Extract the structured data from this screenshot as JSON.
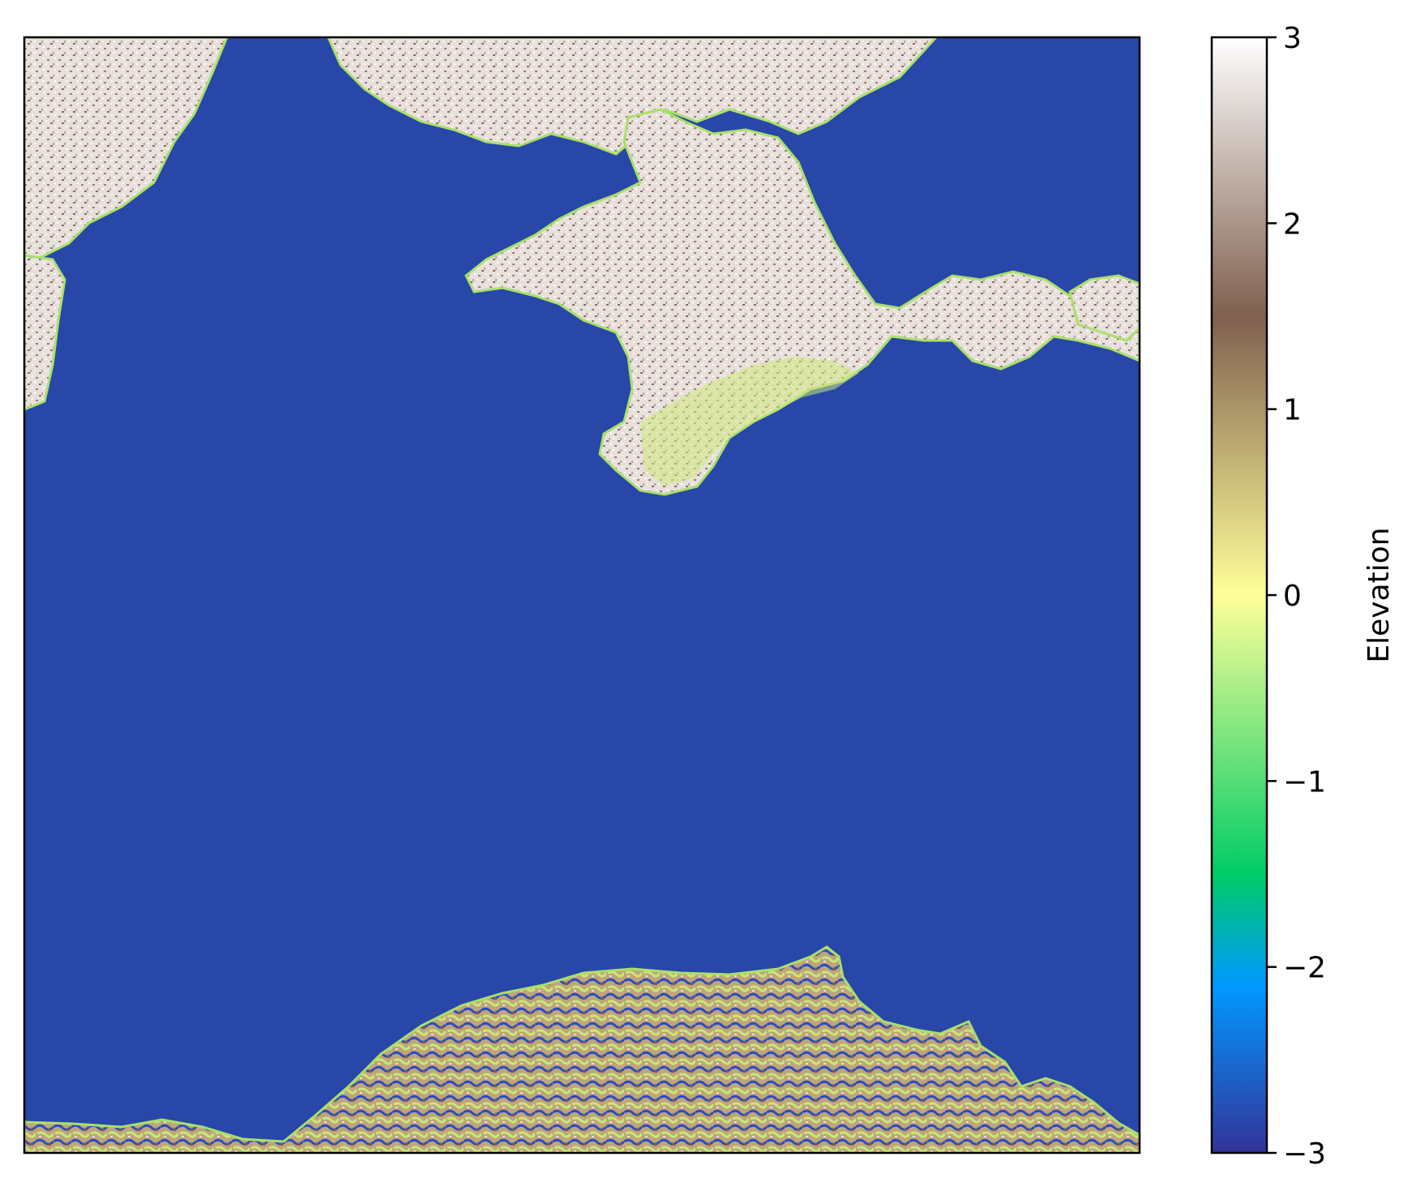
{
  "chart_data": {
    "type": "heatmap",
    "title": "",
    "xlabel": "",
    "ylabel": "",
    "axes_ticks": "hidden",
    "colormap": "terrain",
    "colorbar": {
      "label": "Elevation",
      "vmin": -3,
      "vmax": 3,
      "ticks": [
        -3,
        -2,
        -1,
        0,
        1,
        2,
        3
      ],
      "tick_labels": [
        "−3",
        "−2",
        "−1",
        "0",
        "1",
        "2",
        "3"
      ],
      "color_stops": [
        {
          "value": -3.0,
          "color": "#333399"
        },
        {
          "value": -2.1,
          "color": "#0099ff"
        },
        {
          "value": -1.5,
          "color": "#00cc66"
        },
        {
          "value": 0.0,
          "color": "#ffff99"
        },
        {
          "value": 1.5,
          "color": "#80604f"
        },
        {
          "value": 3.0,
          "color": "#ffffff"
        }
      ]
    },
    "sea_color": "#2847a8",
    "regions_depicted": [
      "sea (dominant, ~-3)",
      "Crimean peninsula (north-center)",
      "northern mainland coast",
      "southern mountainous coast"
    ]
  }
}
